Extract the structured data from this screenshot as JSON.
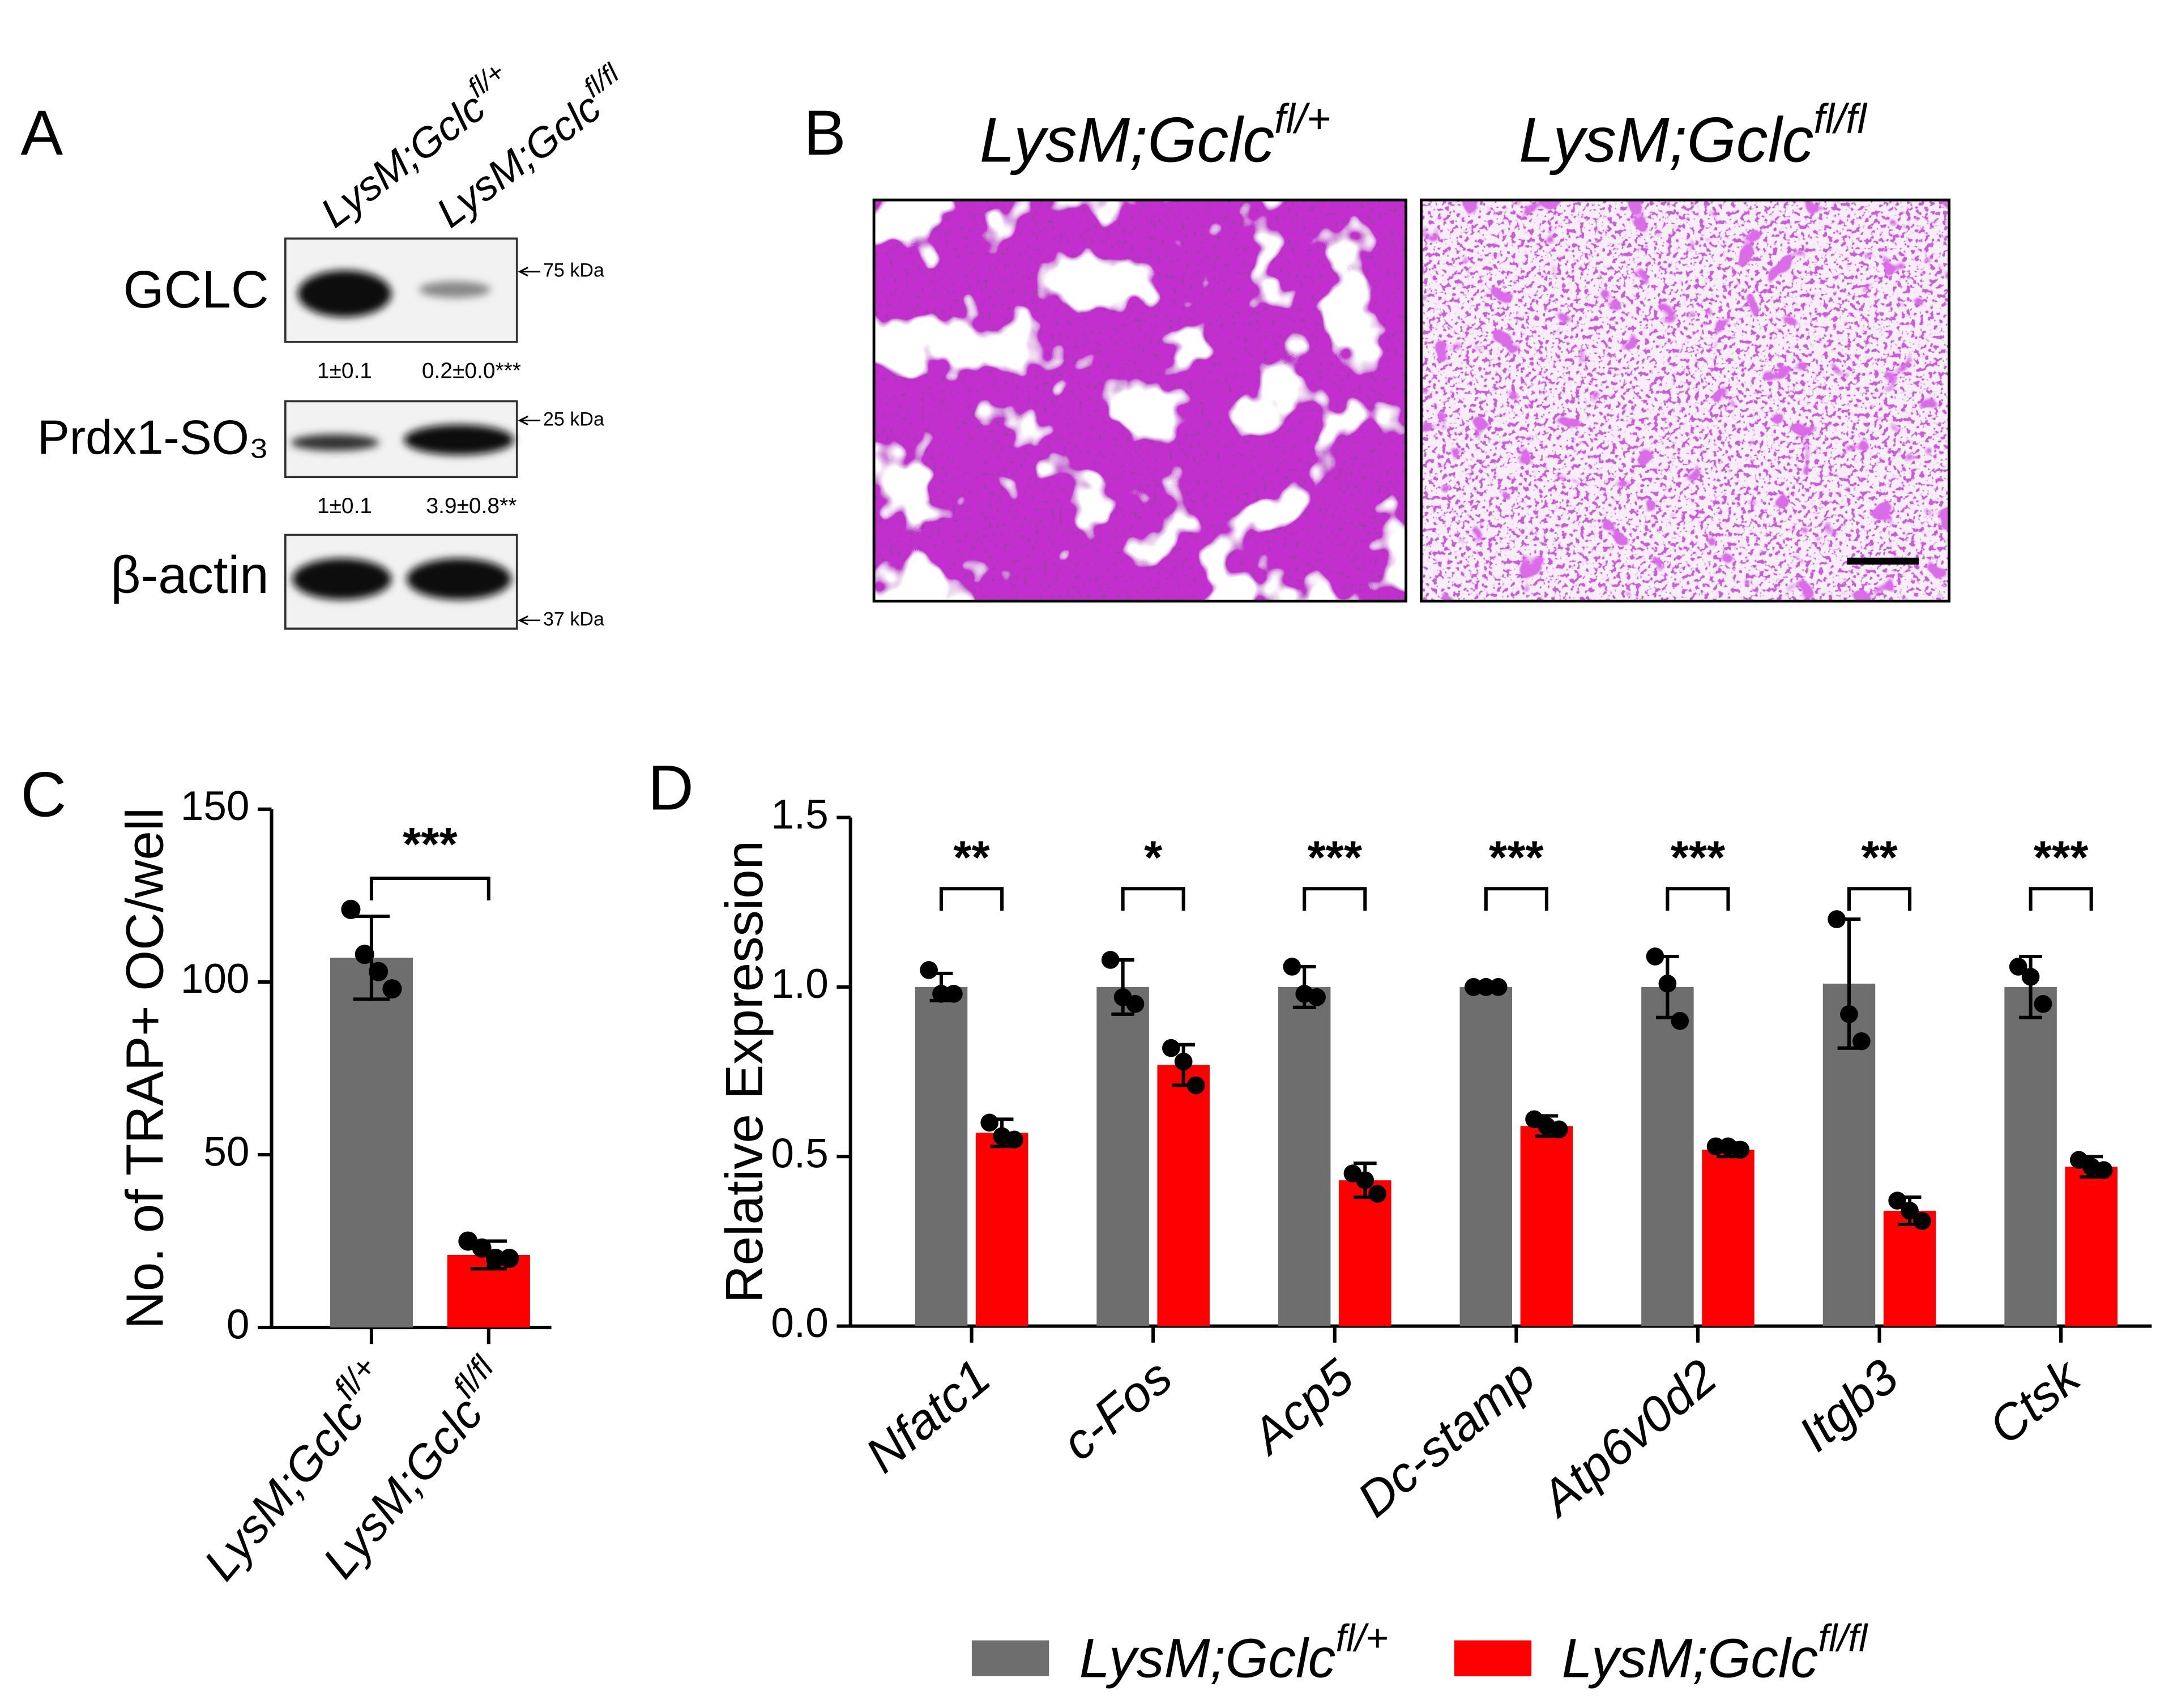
{
  "panel_labels": [
    "A",
    "B",
    "C",
    "D"
  ],
  "genotypes": [
    {
      "base": "LysM;Gclc",
      "superscript": "fl/+"
    },
    {
      "base": "LysM;Gclc",
      "superscript": "fl/fl"
    }
  ],
  "western_blot": {
    "rows": [
      {
        "label": "GCLC",
        "marker": "75 kDa",
        "quantification": [
          "1±0.1",
          "0.2±0.0***"
        ]
      },
      {
        "label": "Prdx1-SO₃",
        "marker": "25 kDa",
        "quantification": [
          "1±0.1",
          "3.9±0.8**"
        ]
      },
      {
        "label": "β-actin",
        "marker": "37 kDa"
      }
    ]
  },
  "chart_data": [
    {
      "type": "bar",
      "y_label": "No. of TRAP+ OC/well",
      "categories": [
        "LysM;Gclc",
        "LysM;Gclc"
      ],
      "category_superscripts": [
        "fl/+",
        "fl/fl"
      ],
      "values": [
        107,
        21
      ],
      "errors": [
        12,
        4
      ],
      "colors": [
        "#6e6e6e",
        "#ff0000"
      ],
      "points": [
        [
          121,
          108,
          103,
          98
        ],
        [
          25,
          23,
          20,
          20
        ]
      ],
      "significance": "***",
      "ylim": [
        0,
        150
      ],
      "yticks": [
        0,
        50,
        100,
        150
      ]
    },
    {
      "type": "bar",
      "y_label": "Relative Expression",
      "categories": [
        "Nfatc1",
        "c-Fos",
        "Acp5",
        "Dc-stamp",
        "Atp6v0d2",
        "Itgb3",
        "Ctsk"
      ],
      "series": [
        {
          "name": "LysM;Gclc",
          "name_superscript": "fl/+",
          "color": "#6e6e6e",
          "values": [
            1.0,
            1.0,
            1.0,
            1.0,
            1.0,
            1.01,
            1.0
          ],
          "errors": [
            0.04,
            0.08,
            0.06,
            0.01,
            0.09,
            0.19,
            0.09
          ],
          "points": [
            [
              1.05,
              0.98,
              0.98
            ],
            [
              1.08,
              0.97,
              0.95
            ],
            [
              1.06,
              0.98,
              0.97
            ],
            [
              1.0,
              1.0,
              1.0
            ],
            [
              1.09,
              1.01,
              0.9
            ],
            [
              1.2,
              0.92,
              0.84
            ],
            [
              1.06,
              1.03,
              0.95
            ]
          ]
        },
        {
          "name": "LysM;Gclc",
          "name_superscript": "fl/fl",
          "color": "#ff0000",
          "values": [
            0.57,
            0.77,
            0.43,
            0.59,
            0.52,
            0.34,
            0.47
          ],
          "errors": [
            0.04,
            0.06,
            0.05,
            0.03,
            0.02,
            0.04,
            0.03
          ],
          "points": [
            [
              0.6,
              0.56,
              0.55
            ],
            [
              0.82,
              0.78,
              0.71
            ],
            [
              0.45,
              0.43,
              0.39
            ],
            [
              0.61,
              0.59,
              0.58
            ],
            [
              0.53,
              0.53,
              0.52
            ],
            [
              0.37,
              0.34,
              0.31
            ],
            [
              0.49,
              0.47,
              0.46
            ]
          ]
        }
      ],
      "significance": [
        "**",
        "*",
        "***",
        "***",
        "***",
        "**",
        "***"
      ],
      "ylim": [
        0,
        1.5
      ],
      "yticks": [
        {
          "value": 0,
          "label": "0.0"
        },
        {
          "value": 0.5,
          "label": "0.5"
        },
        {
          "value": 1,
          "label": "1.0"
        },
        {
          "value": 1.5,
          "label": "1.5"
        }
      ],
      "legend": "bottom"
    }
  ]
}
